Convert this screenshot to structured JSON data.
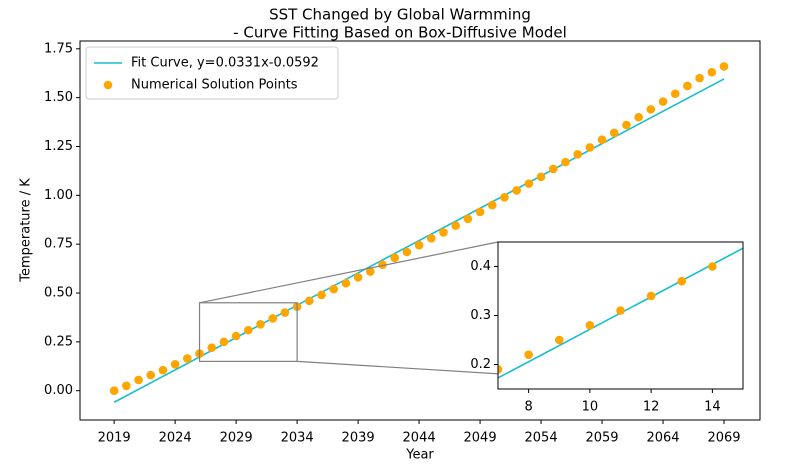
{
  "chart_data": [
    {
      "type": "scatter",
      "title": "SST Changed by Global Warmming",
      "subtitle": "- Curve Fitting Based on Box-Diffusive Model",
      "xlabel": "Year",
      "ylabel": "Temperature / K",
      "legend": "upper left",
      "xlim": [
        -2.8,
        52.95
      ],
      "ylim": [
        -0.15,
        1.79
      ],
      "xticks": [
        {
          "value": 0,
          "label": "2019"
        },
        {
          "value": 5,
          "label": "2024"
        },
        {
          "value": 10,
          "label": "2029"
        },
        {
          "value": 15,
          "label": "2034"
        },
        {
          "value": 20,
          "label": "2039"
        },
        {
          "value": 25,
          "label": "2044"
        },
        {
          "value": 30,
          "label": "2049"
        },
        {
          "value": 35,
          "label": "2054"
        },
        {
          "value": 40,
          "label": "2059"
        },
        {
          "value": 45,
          "label": "2064"
        },
        {
          "value": 50,
          "label": "2069"
        }
      ],
      "yticks": [
        {
          "value": 0,
          "label": "0.00"
        },
        {
          "value": 0.25,
          "label": "0.25"
        },
        {
          "value": 0.5,
          "label": "0.50"
        },
        {
          "value": 0.75,
          "label": "0.75"
        },
        {
          "value": 1,
          "label": "1.00"
        },
        {
          "value": 1.25,
          "label": "1.25"
        },
        {
          "value": 1.5,
          "label": "1.50"
        },
        {
          "value": 1.75,
          "label": "1.75"
        }
      ],
      "series": [
        {
          "name": "Fit Curve, y=0.0331x-0.0592",
          "type": "line",
          "color": "#17becf",
          "x": [
            0,
            50
          ],
          "values": [
            -0.0592,
            1.5958
          ]
        },
        {
          "name": "Numerical Solution Points",
          "type": "scatter",
          "color": "#ffa500",
          "x": [
            0,
            1,
            2,
            3,
            4,
            5,
            6,
            7,
            8,
            9,
            10,
            11,
            12,
            13,
            14,
            15,
            16,
            17,
            18,
            19,
            20,
            21,
            22,
            23,
            24,
            25,
            26,
            27,
            28,
            29,
            30,
            31,
            32,
            33,
            34,
            35,
            36,
            37,
            38,
            39,
            40,
            41,
            42,
            43,
            44,
            45,
            46,
            47,
            48,
            49,
            50
          ],
          "values": [
            0,
            0.025,
            0.055,
            0.08,
            0.105,
            0.135,
            0.165,
            0.19,
            0.22,
            0.25,
            0.28,
            0.31,
            0.34,
            0.37,
            0.4,
            0.43,
            0.46,
            0.49,
            0.52,
            0.55,
            0.58,
            0.61,
            0.645,
            0.68,
            0.71,
            0.745,
            0.78,
            0.81,
            0.845,
            0.88,
            0.915,
            0.95,
            0.99,
            1.025,
            1.06,
            1.095,
            1.135,
            1.17,
            1.21,
            1.245,
            1.285,
            1.32,
            1.36,
            1.4,
            1.44,
            1.48,
            1.52,
            1.56,
            1.6,
            1.63,
            1.66
          ]
        }
      ]
    },
    {
      "type": "scatter",
      "xlim": [
        7,
        15
      ],
      "ylim": [
        0.15,
        0.45
      ],
      "xticks": [
        8,
        10,
        12,
        14
      ],
      "yticks": [
        0.2,
        0.3,
        0.4
      ],
      "series": [
        {
          "type": "line",
          "color": "#17becf",
          "x": [
            7,
            15
          ],
          "values": [
            0.1725,
            0.4373
          ]
        },
        {
          "type": "scatter",
          "color": "#ffa500",
          "x": [
            7,
            8,
            9,
            10,
            11,
            12,
            13,
            14
          ],
          "values": [
            0.19,
            0.22,
            0.25,
            0.28,
            0.31,
            0.34,
            0.37,
            0.4
          ]
        }
      ]
    }
  ]
}
